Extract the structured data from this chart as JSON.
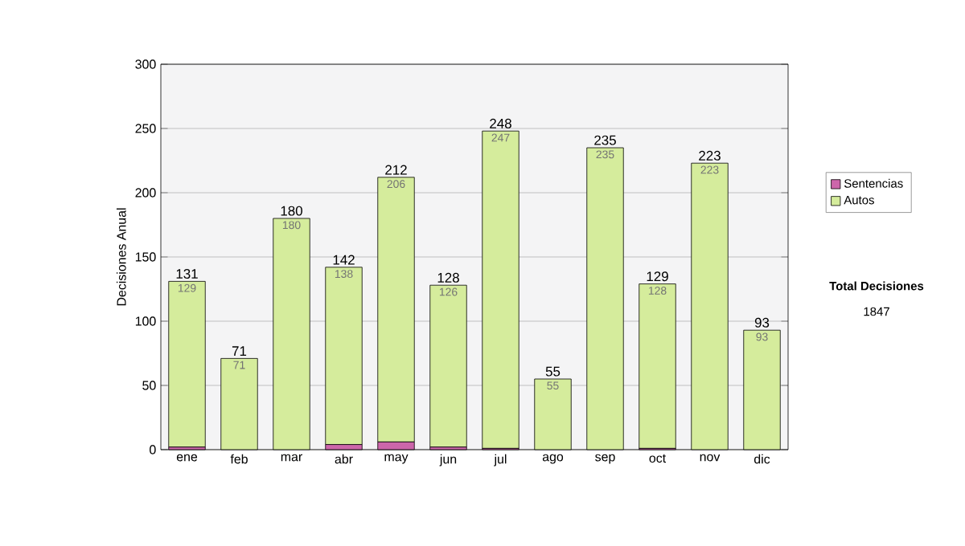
{
  "chart_data": {
    "type": "bar",
    "stacked": true,
    "ylabel": "Decisiones Anual",
    "categories": [
      "ene",
      "feb",
      "mar",
      "abr",
      "may",
      "jun",
      "jul",
      "ago",
      "sep",
      "oct",
      "nov",
      "dic"
    ],
    "series": [
      {
        "name": "Sentencias",
        "color": "#cc66aa",
        "values": [
          2,
          0,
          0,
          4,
          6,
          2,
          1,
          0,
          0,
          1,
          0,
          0
        ]
      },
      {
        "name": "Autos",
        "color": "#d5ec9c",
        "values": [
          129,
          71,
          180,
          138,
          206,
          126,
          247,
          55,
          235,
          128,
          223,
          93
        ],
        "value_labels": [
          "129",
          "71",
          "180",
          "138",
          "206",
          "126",
          "247",
          "55",
          "235",
          "128",
          "223",
          "93"
        ]
      }
    ],
    "totals": [
      "131",
      "71",
      "180",
      "142",
      "212",
      "128",
      "248",
      "55",
      "235",
      "129",
      "223",
      "93"
    ],
    "ylim": [
      0,
      300
    ],
    "yticks": [
      0,
      50,
      100,
      150,
      200,
      250,
      300
    ],
    "grid": "y",
    "legend": "right",
    "annotations": [
      "Total Decisiones",
      "1847"
    ]
  }
}
